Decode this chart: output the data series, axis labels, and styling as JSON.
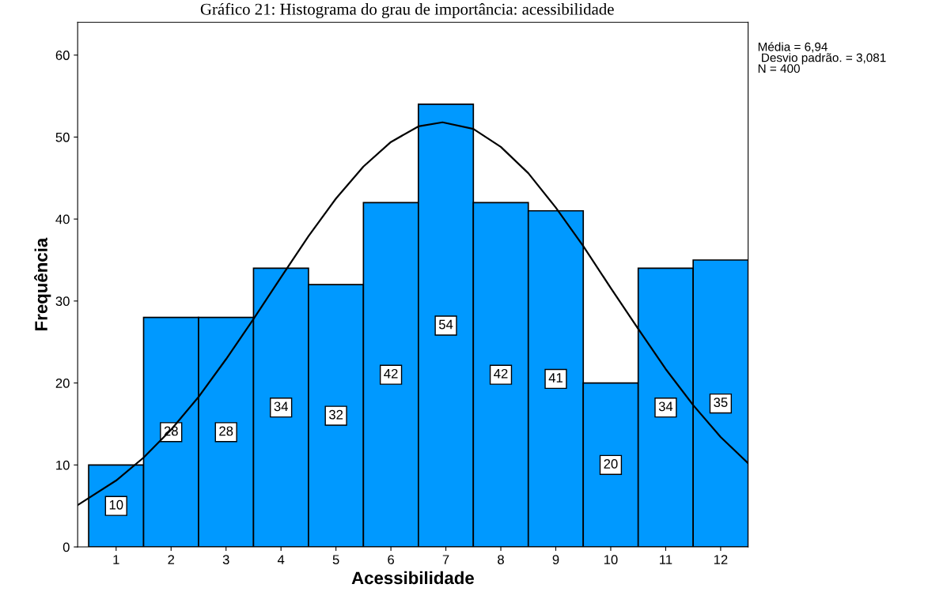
{
  "chart_data": {
    "type": "histogram",
    "title": "Gráfico 21: Histograma do grau de importância: acessibilidade",
    "xlabel": "Acessibilidade",
    "ylabel": "Frequência",
    "bins": [
      0.5,
      1.5,
      2.5,
      3.5,
      4.5,
      5.5,
      6.5,
      7.5,
      8.5,
      9.5,
      10.5,
      11.5,
      12.5
    ],
    "values": [
      10,
      28,
      28,
      34,
      32,
      42,
      54,
      42,
      41,
      20,
      34,
      35
    ],
    "color": "#0099ff",
    "value_labels": [
      "10",
      "28",
      "28",
      "34",
      "32",
      "42",
      "54",
      "42",
      "41",
      "20",
      "34",
      "35"
    ],
    "series": [
      {
        "type": "line",
        "color": "#000000",
        "x": [
          0.3,
          1,
          1.5,
          2,
          2.5,
          3,
          3.5,
          4,
          4.5,
          5,
          5.5,
          6,
          6.5,
          6.94,
          7.5,
          8,
          8.5,
          9,
          9.5,
          10,
          10.5,
          11,
          11.5,
          12,
          12.5
        ],
        "values": [
          5.1,
          8.1,
          10.9,
          14.3,
          18.3,
          22.9,
          27.8,
          32.9,
          37.9,
          42.5,
          46.4,
          49.4,
          51.3,
          51.8,
          51.0,
          48.8,
          45.6,
          41.4,
          36.7,
          31.6,
          26.6,
          21.7,
          17.3,
          13.4,
          10.2
        ]
      }
    ],
    "xlim": [
      0.3,
      12.5
    ],
    "xticks": [
      1,
      2,
      3,
      4,
      5,
      6,
      7,
      8,
      9,
      10,
      11,
      12
    ],
    "ylim": [
      0,
      64
    ],
    "yticks": [
      0,
      10,
      20,
      30,
      40,
      50,
      60
    ],
    "grid": false,
    "marker": "none",
    "line_style": "solid",
    "annotations": [
      "Média = 6,94",
      " Desvio padrão. = 3,081",
      "N = 400"
    ]
  }
}
